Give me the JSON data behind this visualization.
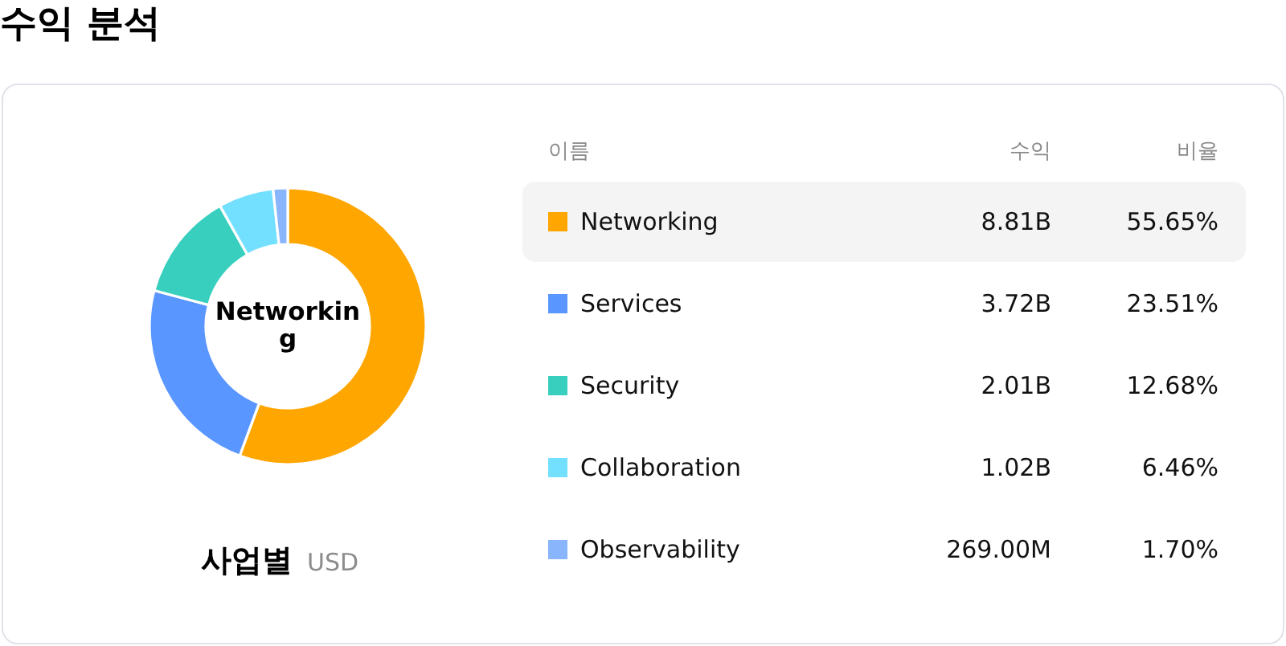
{
  "chart_data": {
    "type": "donut",
    "title": "수익 분석",
    "subtitle": "사업별",
    "legend_title": "이름",
    "categories": [
      "Networking",
      "Services",
      "Security",
      "Collaboration",
      "Observability"
    ],
    "values": [
      55.65,
      23.51,
      12.68,
      6.46,
      1.7
    ],
    "value_labels": [
      "55.65%",
      "23.51%",
      "12.68%",
      "6.46%",
      "1.70%"
    ],
    "colors": [
      "#ffa600",
      "#5a96ff",
      "#38cfbf",
      "#73e0ff",
      "#88b5fb"
    ],
    "legend": "right",
    "annotations": [
      "Networking",
      "수익",
      "비율",
      "USD",
      "8.81B",
      "3.72B",
      "2.01B",
      "1.02B",
      "269.00M"
    ]
  }
}
